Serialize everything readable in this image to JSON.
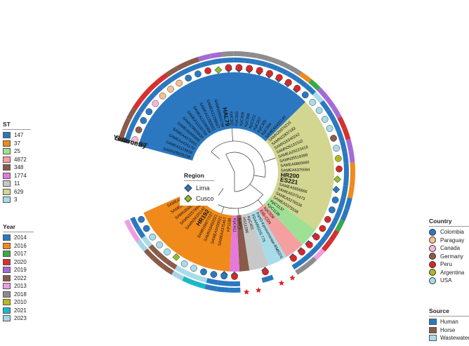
{
  "colors": {
    "st": {
      "147": "#2b78c0",
      "37": "#f08a1a",
      "25": "#9fe095",
      "4872": "#f4a0a0",
      "348": "#8a5a4a",
      "1774": "#e47adb",
      "11": "#c8c8c8",
      "629": "#d2d690",
      "3": "#a8dce8"
    },
    "year": {
      "2014": "#2b78c0",
      "2016": "#f08a1a",
      "2017": "#3aa84a",
      "2020": "#d63030",
      "2019": "#a46bd6",
      "2022": "#8a5a4a",
      "2013": "#f09ce0",
      "2018": "#8c8c8c",
      "2010": "#b8b81e",
      "2021": "#1ab8c8",
      "2023": "#a8d4e8"
    },
    "country": {
      "Colombia": "#2b78c0",
      "Paraguay": "#f8c090",
      "Canada": "#f8b8d8",
      "Germany": "#8a5a4a",
      "Peru": "#d62828",
      "Argentina": "#b0b820",
      "USA": "#a8dce8"
    },
    "source": {
      "Human": "#2b78c0",
      "Horse": "#8a5a4a",
      "Wastewater": "#a8dce8"
    },
    "region": {
      "Lima": "#2b78c0",
      "Cusco": "#90c030"
    },
    "star": "#e02020"
  },
  "ring_labels": {
    "year": "Year",
    "source": "Source",
    "country": "Country",
    "st": "ST"
  },
  "leaves": [
    {
      "label": "SAMN29935258",
      "st": "147",
      "year": "2022",
      "source": "Human",
      "country": "Canada",
      "marker": "",
      "bold": false
    },
    {
      "label": "SAMEA1119908",
      "st": "147",
      "year": "2022",
      "source": "Human",
      "country": "Germany",
      "marker": "",
      "bold": false
    },
    {
      "label": "SAMEA4425179",
      "st": "147",
      "year": "2022",
      "source": "Human",
      "country": "Colombia",
      "marker": "",
      "bold": false
    },
    {
      "label": "SAMEA4375601",
      "st": "147",
      "year": "2020",
      "source": "Human",
      "country": "Colombia",
      "marker": "",
      "bold": false
    },
    {
      "label": "SAMEA5955895",
      "st": "147",
      "year": "2020",
      "source": "Human",
      "country": "Canada",
      "marker": "",
      "bold": false
    },
    {
      "label": "SAMN29935830",
      "st": "147",
      "year": "2020",
      "source": "Human",
      "country": "Paraguay",
      "marker": "",
      "bold": false
    },
    {
      "label": "SAMEA11100793",
      "st": "147",
      "year": "2020",
      "source": "Human",
      "country": "Paraguay",
      "marker": "",
      "bold": false
    },
    {
      "label": "SAMEA11030968",
      "st": "147",
      "year": "2022",
      "source": "Human",
      "country": "Paraguay",
      "marker": "",
      "bold": false
    },
    {
      "label": "SAMEA11283553",
      "st": "147",
      "year": "2022",
      "source": "Human",
      "country": "Colombia",
      "marker": "",
      "bold": false
    },
    {
      "label": "SAMEA11298507",
      "st": "147",
      "year": "2022",
      "source": "Human",
      "country": "Colombia",
      "marker": "",
      "bold": false
    },
    {
      "label": "SAMN28503798",
      "st": "147",
      "year": "2019",
      "source": "Human",
      "country": "Peru",
      "marker": "",
      "bold": false
    },
    {
      "label": "HAL79",
      "st": "147",
      "year": "2019",
      "source": "Human",
      "country": "",
      "marker": "Cusco",
      "bold": true
    },
    {
      "label": "KpC302",
      "st": "147",
      "year": "2018",
      "source": "Human",
      "country": "Peru",
      "marker": "Lima",
      "bold": false
    },
    {
      "label": "KpC310",
      "st": "147",
      "year": "2018",
      "source": "Human",
      "country": "Peru",
      "marker": "Lima",
      "bold": false
    },
    {
      "label": "KpC309",
      "st": "147",
      "year": "2018",
      "source": "Human",
      "country": "Peru",
      "marker": "Lima",
      "bold": false
    },
    {
      "label": "KpC308",
      "st": "147",
      "year": "2018",
      "source": "Human",
      "country": "Peru",
      "marker": "Lima",
      "bold": false
    },
    {
      "label": "KpC312",
      "st": "147",
      "year": "2018",
      "source": "Human",
      "country": "Peru",
      "marker": "Lima",
      "bold": false
    },
    {
      "label": "KpC307",
      "st": "147",
      "year": "2018",
      "source": "Human",
      "country": "Peru",
      "marker": "Lima",
      "bold": false
    },
    {
      "label": "KpC305",
      "st": "147",
      "year": "2018",
      "source": "Human",
      "country": "Peru",
      "marker": "Lima",
      "bold": false
    },
    {
      "label": "KpC304",
      "st": "147",
      "year": "2016",
      "source": "Human",
      "country": "Peru",
      "marker": "Lima",
      "bold": false
    },
    {
      "label": "SAMEA6425140",
      "st": "147",
      "year": "2017",
      "source": "Human",
      "country": "Colombia",
      "marker": "",
      "bold": false
    },
    {
      "label": "SAMN26976216",
      "st": "629",
      "year": "2019",
      "source": "Wastewater",
      "country": "USA",
      "marker": "",
      "bold": false
    },
    {
      "label": "SAMN22837182",
      "st": "629",
      "year": "2019",
      "source": "Human",
      "country": "USA",
      "marker": "",
      "bold": false
    },
    {
      "label": "SAMN16340242",
      "st": "629",
      "year": "2019",
      "source": "Human",
      "country": "USA",
      "marker": "",
      "bold": false
    },
    {
      "label": "SAMN26101532",
      "st": "629",
      "year": "2020",
      "source": "Human",
      "country": "USA",
      "marker": "",
      "bold": false
    },
    {
      "label": "SAMEA29223418",
      "st": "629",
      "year": "2020",
      "source": "Human",
      "country": "Germany",
      "marker": "",
      "bold": false
    },
    {
      "label": "SAMN35518399",
      "st": "629",
      "year": "2019",
      "source": "Human",
      "country": "USA",
      "marker": "",
      "bold": false
    },
    {
      "label": "SAMEA6865660",
      "st": "629",
      "year": "2019",
      "source": "Human",
      "country": "Argentina",
      "marker": "",
      "bold": false
    },
    {
      "label": "SAMEA6375594",
      "st": "629",
      "year": "2016",
      "source": "Human",
      "country": "Peru",
      "marker": "",
      "bold": false
    },
    {
      "label": "HR200",
      "st": "629",
      "year": "2016",
      "source": "Human",
      "country": "",
      "marker": "Cusco",
      "bold": true
    },
    {
      "label": "ES221",
      "st": "629",
      "year": "2016",
      "source": "Human",
      "country": "",
      "marker": "Lima",
      "bold": true
    },
    {
      "label": "SAMEA5856666",
      "st": "629",
      "year": "2014",
      "source": "Human",
      "country": "Colombia",
      "marker": "",
      "bold": false
    },
    {
      "label": "SAMEA5375473",
      "st": "629",
      "year": "2014",
      "source": "Human",
      "country": "Colombia",
      "marker": "",
      "bold": false
    },
    {
      "label": "SAMEA5276538",
      "st": "629",
      "year": "2017",
      "source": "Human",
      "country": "Peru",
      "marker": "",
      "bold": false
    },
    {
      "label": "SAMEA5375538",
      "st": "629",
      "year": "2020",
      "source": "Human",
      "country": "Peru",
      "marker": "",
      "bold": false
    },
    {
      "label": "KpC1137",
      "st": "25",
      "year": "2020",
      "source": "Human",
      "country": "Peru",
      "marker": "Lima",
      "bold": false
    },
    {
      "label": "KpC1136",
      "st": "25",
      "year": "2013",
      "source": "Human",
      "country": "Peru",
      "marker": "Lima",
      "bold": false
    },
    {
      "label": "KpC509",
      "st": "4872",
      "year": "2018",
      "source": "Human",
      "country": "Peru",
      "marker": "Lima",
      "bold": false
    },
    {
      "label": "E8b-CSN",
      "st": "4872",
      "year": "2018",
      "source": "Human",
      "country": "Peru",
      "marker": "Lima",
      "bold": false
    },
    {
      "label": "PartO-Kpneumoniae-RM8376",
      "st": "3",
      "year": "",
      "source": "",
      "country": "",
      "marker": "star",
      "bold": false
    },
    {
      "label": "FDAARGOS 775",
      "st": "3",
      "year": "",
      "source": "",
      "country": "",
      "marker": "star",
      "bold": false
    },
    {
      "label": "KpC401",
      "st": "11",
      "year": "",
      "source": "Human",
      "country": "Peru",
      "marker": "Lima",
      "bold": false
    },
    {
      "label": "HS11286",
      "st": "11",
      "year": "",
      "source": "",
      "country": "",
      "marker": "star",
      "bold": false
    },
    {
      "label": "hvKP1",
      "st": "348",
      "year": "",
      "source": "",
      "country": "",
      "marker": "star",
      "bold": false
    },
    {
      "label": "KpC611",
      "st": "1774",
      "year": "2014",
      "source": "Human",
      "country": "Peru",
      "marker": "Lima",
      "bold": false
    },
    {
      "label": "KP1188",
      "st": "37",
      "year": "2014",
      "source": "Human",
      "country": "Colombia",
      "marker": "Lima",
      "bold": false
    },
    {
      "label": "SAMEA4375457",
      "st": "37",
      "year": "2014",
      "source": "Human",
      "country": "Colombia",
      "marker": "",
      "bold": false
    },
    {
      "label": "SAMEA3450021",
      "st": "37",
      "year": "2021",
      "source": "Wastewater",
      "country": "Colombia",
      "marker": "",
      "bold": false
    },
    {
      "label": "SAMN33450021",
      "st": "37",
      "year": "2021",
      "source": "Wastewater",
      "country": "USA",
      "marker": "",
      "bold": false
    },
    {
      "label": "SAMN39977237",
      "st": "37",
      "year": "2023",
      "source": "Wastewater",
      "country": "USA",
      "marker": "",
      "bold": false
    },
    {
      "label": "HR192",
      "st": "37",
      "year": "2022",
      "source": "Horse",
      "country": "",
      "marker": "Cusco",
      "bold": true
    },
    {
      "label": "SAMN34191142",
      "st": "37",
      "year": "2022",
      "source": "Horse",
      "country": "USA",
      "marker": "",
      "bold": false
    },
    {
      "label": "SAMN32578940",
      "st": "37",
      "year": "2022",
      "source": "Horse",
      "country": "USA",
      "marker": "",
      "bold": false
    },
    {
      "label": "SAMN35687761",
      "st": "37",
      "year": "2023",
      "source": "Wastewater",
      "country": "USA",
      "marker": "",
      "bold": false
    },
    {
      "label": "SAMEA6425512",
      "st": "37",
      "year": "2013",
      "source": "Human",
      "country": "Colombia",
      "marker": "",
      "bold": false
    },
    {
      "label": "SAMEA5855741",
      "st": "37",
      "year": "2013",
      "source": "Human",
      "country": "Colombia",
      "marker": "",
      "bold": false
    }
  ],
  "legends": {
    "region": {
      "title": "Region",
      "items": [
        {
          "label": "Lima",
          "key": "Lima"
        },
        {
          "label": "Cusco",
          "key": "Cusco"
        }
      ]
    },
    "st": {
      "title": "ST",
      "items": [
        "147",
        "37",
        "25",
        "4872",
        "348",
        "1774",
        "11",
        "629",
        "3"
      ]
    },
    "year": {
      "title": "Year",
      "items": [
        "2014",
        "2016",
        "2017",
        "2020",
        "2019",
        "2022",
        "2013",
        "2018",
        "2010",
        "2021",
        "2023"
      ]
    },
    "country": {
      "title": "Country",
      "items": [
        "Colombia",
        "Paraguay",
        "Canada",
        "Germany",
        "Peru",
        "Argentina",
        "USA"
      ]
    },
    "source": {
      "title": "Source",
      "items": [
        "Human",
        "Horse",
        "Wastewater"
      ]
    }
  }
}
